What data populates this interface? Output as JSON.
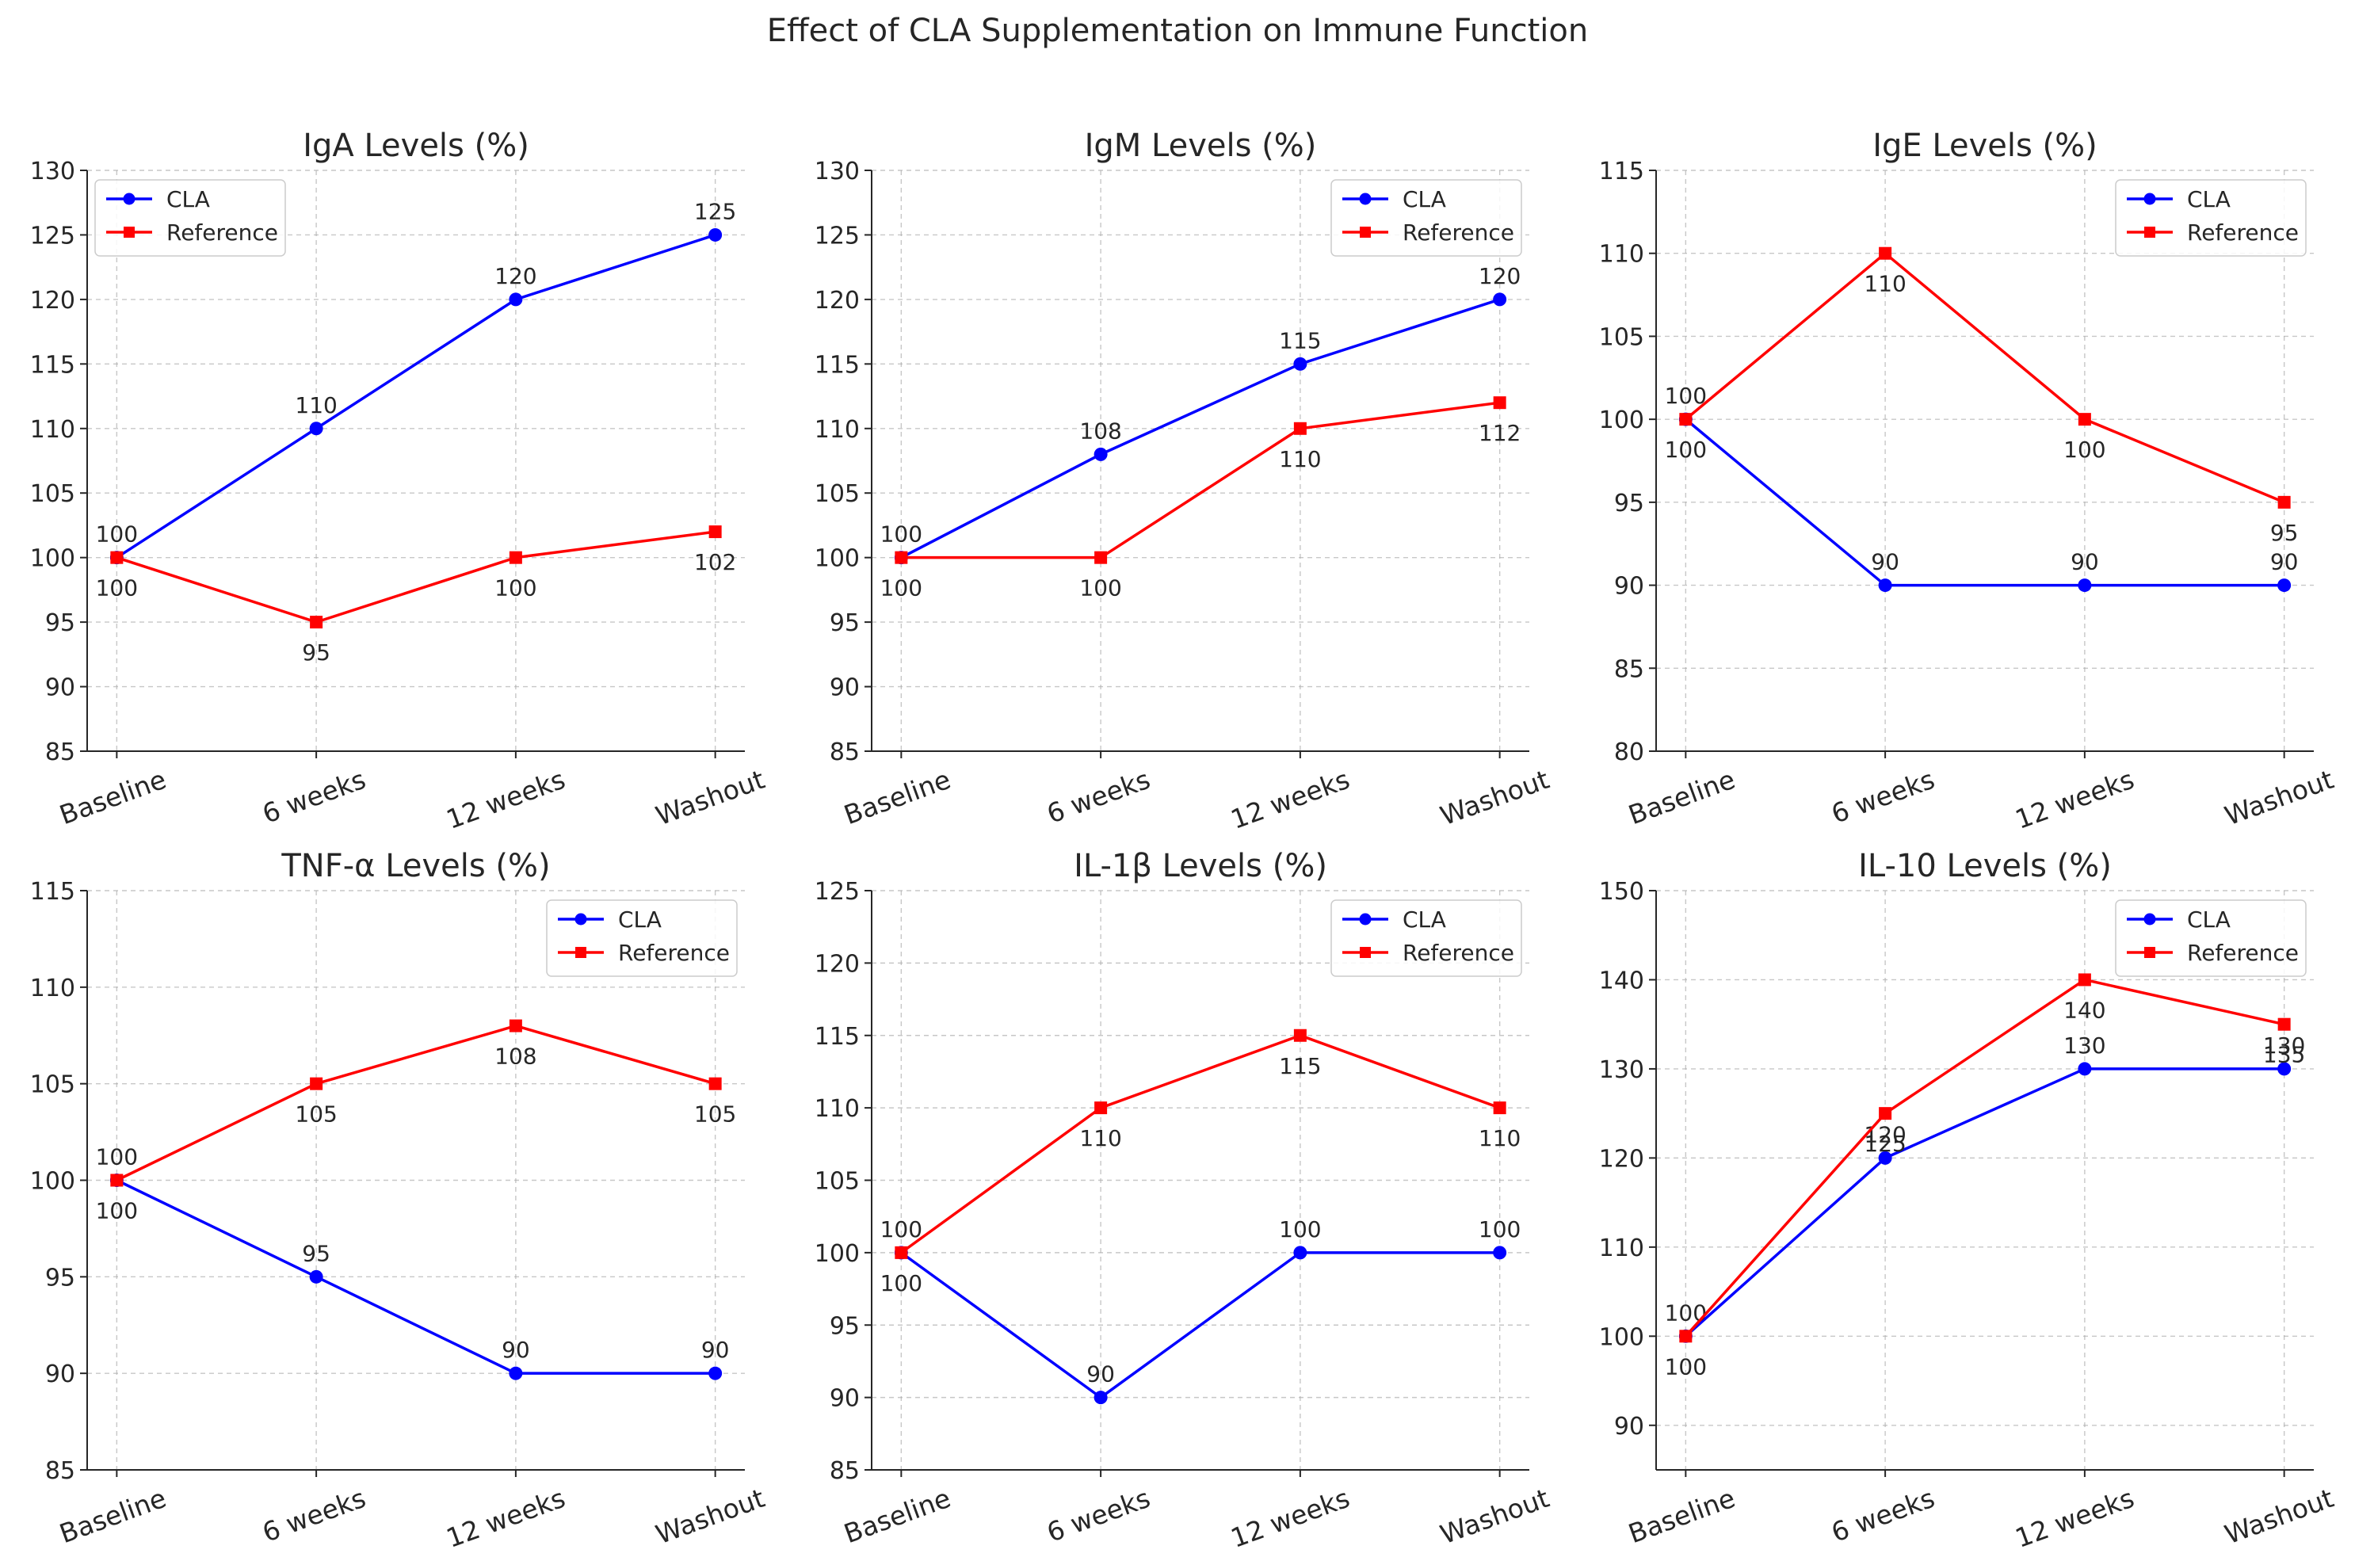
{
  "figure": {
    "suptitle": "Effect of CLA Supplementation on Immune Function"
  },
  "colors": {
    "CLA": "#0000ff",
    "Reference": "#ff0000",
    "grid": "#b0b0b0",
    "axis": "#262626"
  },
  "chart_data": [
    {
      "type": "line",
      "title": "IgA Levels (%)",
      "categories": [
        "Baseline",
        "6 weeks",
        "12 weeks",
        "Washout"
      ],
      "ylim": [
        85,
        130
      ],
      "yticks": [
        85,
        90,
        95,
        100,
        105,
        110,
        115,
        120,
        125,
        130
      ],
      "grid": true,
      "legend": "upper left",
      "series": [
        {
          "name": "CLA",
          "marker": "circle",
          "values": [
            100,
            110,
            120,
            125
          ],
          "labels": [
            "100",
            "110",
            "120",
            "125"
          ],
          "label_pos": "above"
        },
        {
          "name": "Reference",
          "marker": "square",
          "values": [
            100,
            95,
            100,
            102
          ],
          "labels": [
            "100",
            "95",
            "100",
            "102"
          ],
          "label_pos": "below"
        }
      ]
    },
    {
      "type": "line",
      "title": "IgM Levels (%)",
      "categories": [
        "Baseline",
        "6 weeks",
        "12 weeks",
        "Washout"
      ],
      "ylim": [
        85,
        130
      ],
      "yticks": [
        85,
        90,
        95,
        100,
        105,
        110,
        115,
        120,
        125,
        130
      ],
      "grid": true,
      "legend": "upper right",
      "series": [
        {
          "name": "CLA",
          "marker": "circle",
          "values": [
            100,
            108,
            115,
            120
          ],
          "labels": [
            "100",
            "108",
            "115",
            "120"
          ],
          "label_pos": "above"
        },
        {
          "name": "Reference",
          "marker": "square",
          "values": [
            100,
            100,
            110,
            112
          ],
          "labels": [
            "100",
            "100",
            "110",
            "112"
          ],
          "label_pos": "below"
        }
      ]
    },
    {
      "type": "line",
      "title": "IgE Levels (%)",
      "categories": [
        "Baseline",
        "6 weeks",
        "12 weeks",
        "Washout"
      ],
      "ylim": [
        80,
        115
      ],
      "yticks": [
        80,
        85,
        90,
        95,
        100,
        105,
        110,
        115
      ],
      "grid": true,
      "legend": "upper right",
      "series": [
        {
          "name": "CLA",
          "marker": "circle",
          "values": [
            100,
            90,
            90,
            90
          ],
          "labels": [
            "100",
            "90",
            "90",
            "90"
          ],
          "label_pos": "above"
        },
        {
          "name": "Reference",
          "marker": "square",
          "values": [
            100,
            110,
            100,
            95
          ],
          "labels": [
            "100",
            "110",
            "100",
            "95"
          ],
          "label_pos": "below"
        }
      ]
    },
    {
      "type": "line",
      "title": "TNF-α Levels (%)",
      "categories": [
        "Baseline",
        "6 weeks",
        "12 weeks",
        "Washout"
      ],
      "ylim": [
        85,
        115
      ],
      "yticks": [
        85,
        90,
        95,
        100,
        105,
        110,
        115
      ],
      "grid": true,
      "legend": "upper right",
      "series": [
        {
          "name": "CLA",
          "marker": "circle",
          "values": [
            100,
            95,
            90,
            90
          ],
          "labels": [
            "100",
            "95",
            "90",
            "90"
          ],
          "label_pos": "above"
        },
        {
          "name": "Reference",
          "marker": "square",
          "values": [
            100,
            105,
            108,
            105
          ],
          "labels": [
            "100",
            "105",
            "108",
            "105"
          ],
          "label_pos": "below"
        }
      ]
    },
    {
      "type": "line",
      "title": "IL-1β Levels (%)",
      "categories": [
        "Baseline",
        "6 weeks",
        "12 weeks",
        "Washout"
      ],
      "ylim": [
        85,
        125
      ],
      "yticks": [
        85,
        90,
        95,
        100,
        105,
        110,
        115,
        120,
        125
      ],
      "grid": true,
      "legend": "upper right",
      "series": [
        {
          "name": "CLA",
          "marker": "circle",
          "values": [
            100,
            90,
            100,
            100
          ],
          "labels": [
            "100",
            "90",
            "100",
            "100"
          ],
          "label_pos": "above"
        },
        {
          "name": "Reference",
          "marker": "square",
          "values": [
            100,
            110,
            115,
            110
          ],
          "labels": [
            "100",
            "110",
            "115",
            "110"
          ],
          "label_pos": "below"
        }
      ]
    },
    {
      "type": "line",
      "title": "IL-10 Levels (%)",
      "categories": [
        "Baseline",
        "6 weeks",
        "12 weeks",
        "Washout"
      ],
      "ylim": [
        85,
        150
      ],
      "yticks": [
        90,
        100,
        110,
        120,
        130,
        140,
        150
      ],
      "grid": true,
      "legend": "upper right",
      "series": [
        {
          "name": "CLA",
          "marker": "circle",
          "values": [
            100,
            120,
            130,
            130
          ],
          "labels": [
            "100",
            "120",
            "130",
            "130"
          ],
          "label_pos": "above"
        },
        {
          "name": "Reference",
          "marker": "square",
          "values": [
            100,
            125,
            140,
            135
          ],
          "labels": [
            "100",
            "125",
            "140",
            "135"
          ],
          "label_pos": "below"
        }
      ]
    }
  ]
}
